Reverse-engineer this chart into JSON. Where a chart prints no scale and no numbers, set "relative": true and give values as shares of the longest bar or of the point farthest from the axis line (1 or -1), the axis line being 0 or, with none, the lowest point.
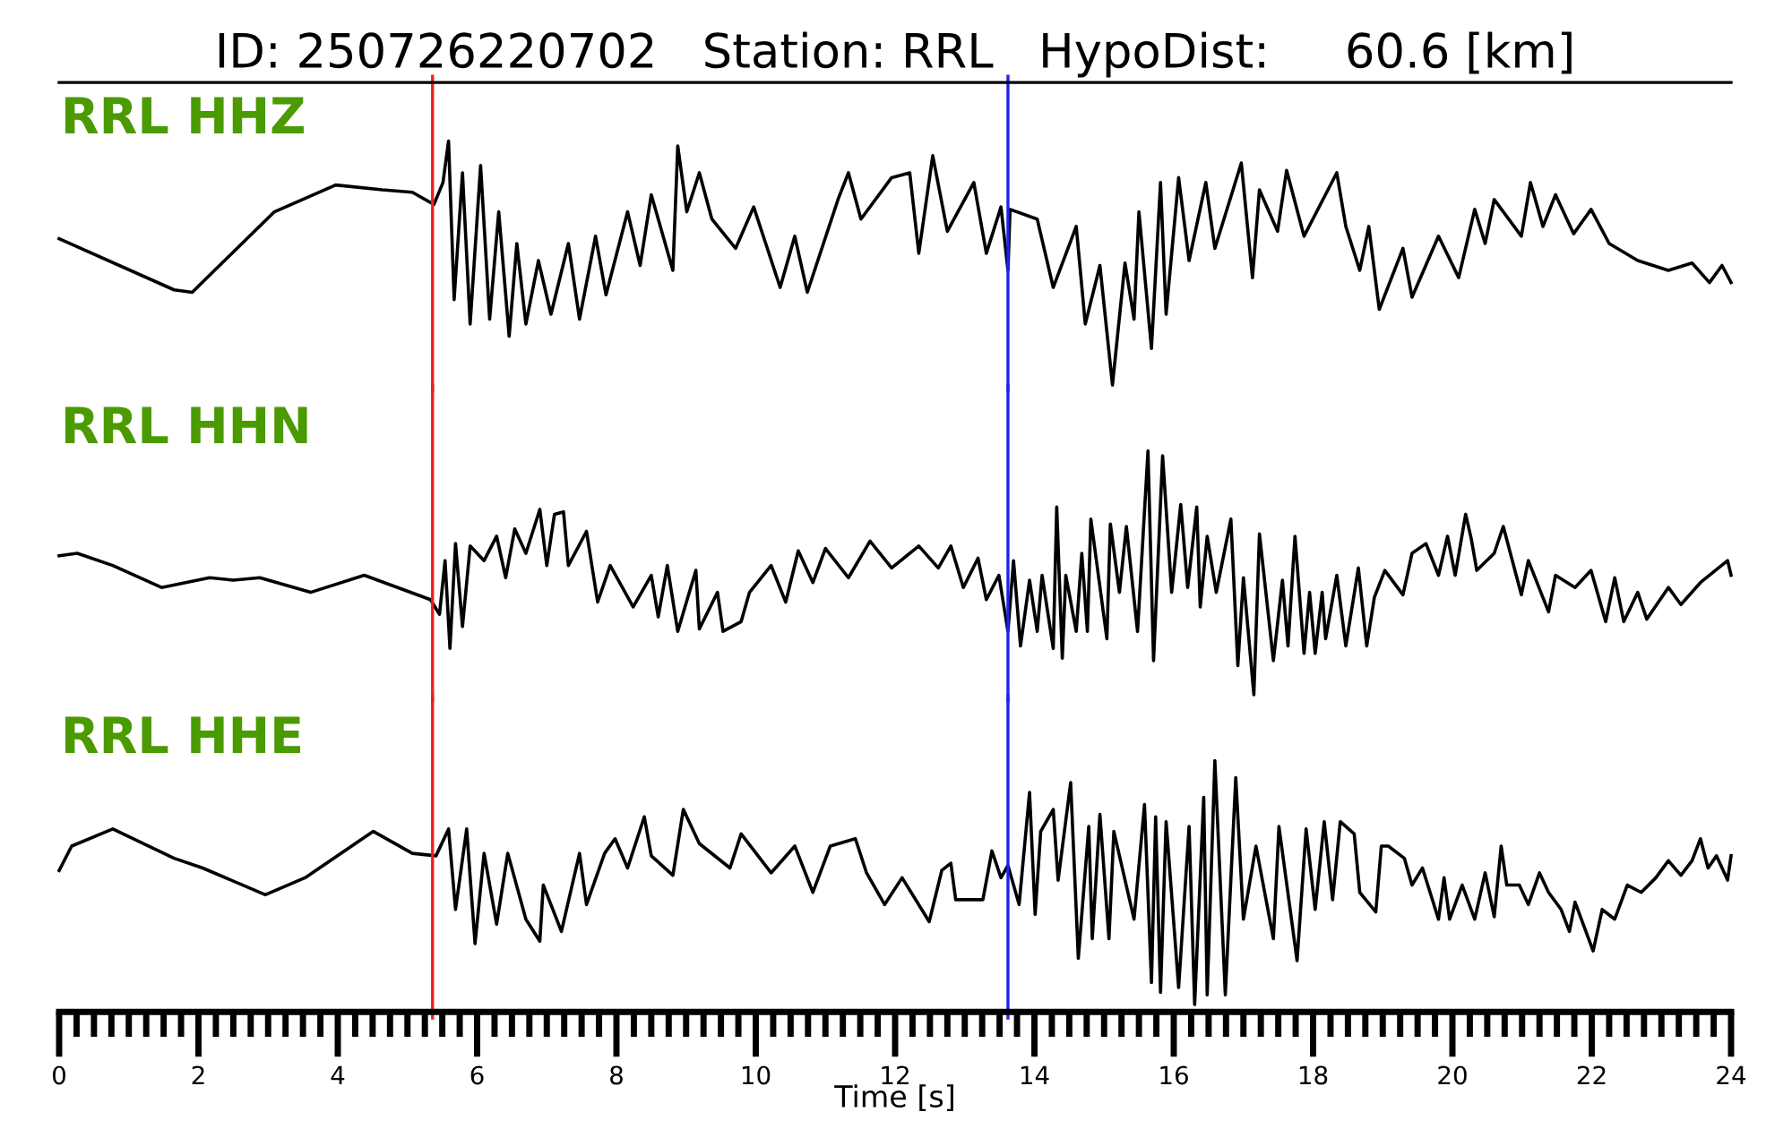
{
  "chart_data": [
    {
      "type": "line",
      "title": "ID: 250726220702   Station: RRL   HypoDist:     60.6 [km]",
      "relative": true,
      "xlim": [
        0,
        24
      ],
      "tick_labels": false,
      "ref_lines": [
        {
          "axis": "x",
          "value": 5.36,
          "color": "#e8211c"
        },
        {
          "axis": "x",
          "value": 13.62,
          "color": "#2020f0"
        }
      ],
      "series": [
        {
          "name": "RRL HHZ",
          "color": "#000000",
          "x": [
            0,
            1.65,
            1.91,
            3.09,
            3.97,
            4.64,
            5.07,
            5.38,
            5.51,
            5.59,
            5.67,
            5.79,
            5.9,
            6.05,
            6.18,
            6.31,
            6.46,
            6.57,
            6.7,
            6.88,
            7.06,
            7.31,
            7.47,
            7.7,
            7.85,
            8.16,
            8.34,
            8.5,
            8.81,
            8.88,
            9.01,
            9.19,
            9.37,
            9.71,
            9.97,
            10.35,
            10.56,
            10.74,
            11.18,
            11.33,
            11.51,
            11.95,
            12.21,
            12.34,
            12.54,
            12.75,
            13.13,
            13.31,
            13.52,
            13.62,
            13.65,
            14.04,
            14.27,
            14.6,
            14.73,
            14.94,
            15.12,
            15.3,
            15.43,
            15.5,
            15.68,
            15.81,
            15.89,
            16.07,
            16.22,
            16.46,
            16.59,
            16.97,
            17.13,
            17.23,
            17.49,
            17.62,
            17.87,
            18.34,
            18.47,
            18.67,
            18.8,
            18.95,
            19.29,
            19.42,
            19.8,
            20.09,
            20.32,
            20.47,
            20.6,
            20.99,
            21.12,
            21.3,
            21.48,
            21.74,
            21.99,
            22.25,
            22.66,
            23.1,
            23.44,
            23.69,
            23.87,
            24.0
          ],
          "values": [
            0.6,
            0.39,
            0.38,
            0.71,
            0.82,
            0.8,
            0.79,
            0.74,
            0.83,
            1.0,
            0.35,
            0.87,
            0.25,
            0.9,
            0.27,
            0.71,
            0.2,
            0.58,
            0.25,
            0.51,
            0.29,
            0.58,
            0.27,
            0.61,
            0.37,
            0.71,
            0.49,
            0.78,
            0.47,
            0.98,
            0.71,
            0.87,
            0.68,
            0.56,
            0.73,
            0.4,
            0.61,
            0.38,
            0.76,
            0.87,
            0.68,
            0.85,
            0.87,
            0.54,
            0.94,
            0.63,
            0.83,
            0.54,
            0.73,
            0.47,
            0.72,
            0.68,
            0.4,
            0.65,
            0.25,
            0.49,
            0.0,
            0.5,
            0.27,
            0.71,
            0.15,
            0.83,
            0.29,
            0.85,
            0.51,
            0.83,
            0.56,
            0.91,
            0.44,
            0.8,
            0.63,
            0.88,
            0.61,
            0.87,
            0.65,
            0.47,
            0.65,
            0.31,
            0.56,
            0.36,
            0.61,
            0.44,
            0.72,
            0.58,
            0.76,
            0.61,
            0.83,
            0.65,
            0.78,
            0.62,
            0.72,
            0.58,
            0.51,
            0.47,
            0.5,
            0.42,
            0.49,
            0.42
          ]
        }
      ]
    },
    {
      "type": "line",
      "relative": true,
      "xlim": [
        0,
        24
      ],
      "tick_labels": false,
      "ref_lines": [
        {
          "axis": "x",
          "value": 5.36,
          "color": "#e8211c"
        },
        {
          "axis": "x",
          "value": 13.62,
          "color": "#2020f0"
        }
      ],
      "series": [
        {
          "name": "RRL HHN",
          "color": "#000000",
          "x": [
            0,
            0.26,
            0.77,
            1.47,
            2.16,
            2.5,
            2.88,
            3.61,
            4.38,
            5.33,
            5.46,
            5.54,
            5.61,
            5.69,
            5.79,
            5.9,
            6.1,
            6.28,
            6.41,
            6.54,
            6.7,
            6.9,
            7.0,
            7.11,
            7.24,
            7.31,
            7.57,
            7.73,
            7.91,
            8.24,
            8.5,
            8.6,
            8.73,
            8.88,
            9.14,
            9.19,
            9.45,
            9.53,
            9.79,
            9.91,
            10.22,
            10.43,
            10.61,
            10.82,
            11.0,
            11.33,
            11.64,
            11.95,
            12.34,
            12.62,
            12.8,
            12.98,
            13.19,
            13.31,
            13.49,
            13.62,
            13.7,
            13.8,
            13.93,
            14.04,
            14.11,
            14.27,
            14.32,
            14.4,
            14.45,
            14.6,
            14.68,
            14.76,
            14.81,
            15.04,
            15.09,
            15.22,
            15.32,
            15.48,
            15.63,
            15.71,
            15.84,
            15.97,
            16.1,
            16.2,
            16.33,
            16.38,
            16.48,
            16.61,
            16.82,
            16.92,
            17.0,
            17.15,
            17.23,
            17.43,
            17.56,
            17.64,
            17.74,
            17.87,
            17.95,
            18.03,
            18.13,
            18.18,
            18.34,
            18.47,
            18.65,
            18.77,
            18.88,
            19.03,
            19.29,
            19.42,
            19.62,
            19.8,
            19.93,
            20.04,
            20.19,
            20.27,
            20.35,
            20.6,
            20.73,
            20.99,
            21.09,
            21.38,
            21.48,
            21.76,
            21.99,
            22.2,
            22.33,
            22.46,
            22.66,
            22.79,
            23.1,
            23.28,
            23.56,
            23.95,
            24.0
          ],
          "values": [
            0.57,
            0.58,
            0.53,
            0.44,
            0.48,
            0.47,
            0.48,
            0.42,
            0.49,
            0.39,
            0.33,
            0.55,
            0.19,
            0.62,
            0.28,
            0.61,
            0.55,
            0.65,
            0.48,
            0.68,
            0.58,
            0.76,
            0.53,
            0.74,
            0.75,
            0.53,
            0.67,
            0.38,
            0.53,
            0.36,
            0.49,
            0.32,
            0.53,
            0.26,
            0.51,
            0.27,
            0.42,
            0.26,
            0.3,
            0.42,
            0.53,
            0.38,
            0.59,
            0.46,
            0.6,
            0.48,
            0.63,
            0.52,
            0.61,
            0.52,
            0.61,
            0.44,
            0.56,
            0.39,
            0.49,
            0.26,
            0.55,
            0.2,
            0.47,
            0.26,
            0.49,
            0.19,
            0.77,
            0.15,
            0.49,
            0.26,
            0.58,
            0.26,
            0.72,
            0.23,
            0.7,
            0.42,
            0.69,
            0.26,
            1.0,
            0.14,
            0.98,
            0.42,
            0.78,
            0.44,
            0.77,
            0.36,
            0.65,
            0.42,
            0.72,
            0.12,
            0.48,
            0.0,
            0.66,
            0.14,
            0.47,
            0.2,
            0.65,
            0.17,
            0.42,
            0.17,
            0.42,
            0.23,
            0.49,
            0.2,
            0.52,
            0.2,
            0.4,
            0.51,
            0.41,
            0.58,
            0.62,
            0.49,
            0.65,
            0.49,
            0.74,
            0.64,
            0.51,
            0.58,
            0.69,
            0.41,
            0.55,
            0.34,
            0.49,
            0.44,
            0.51,
            0.3,
            0.48,
            0.3,
            0.42,
            0.31,
            0.44,
            0.37,
            0.46,
            0.55,
            0.49
          ]
        }
      ]
    },
    {
      "type": "line",
      "relative": true,
      "xlim": [
        0,
        24
      ],
      "xticks": [
        0,
        2,
        4,
        6,
        8,
        10,
        12,
        14,
        16,
        18,
        20,
        22,
        24
      ],
      "xlabel": "Time [s]",
      "tick_labels": "x",
      "ref_lines": [
        {
          "axis": "x",
          "value": 5.36,
          "color": "#e8211c"
        },
        {
          "axis": "x",
          "value": 13.62,
          "color": "#2020f0"
        }
      ],
      "series": [
        {
          "name": "RRL HHE",
          "color": "#000000",
          "x": [
            0,
            0.18,
            0.77,
            1.65,
            2.06,
            2.96,
            3.53,
            4.51,
            5.07,
            5.41,
            5.59,
            5.69,
            5.85,
            5.97,
            6.1,
            6.28,
            6.44,
            6.7,
            6.9,
            6.95,
            7.21,
            7.47,
            7.57,
            7.83,
            7.98,
            8.16,
            8.4,
            8.5,
            8.81,
            8.96,
            9.19,
            9.63,
            9.79,
            10.22,
            10.56,
            10.82,
            11.07,
            11.43,
            11.59,
            11.85,
            12.1,
            12.49,
            12.67,
            12.8,
            12.87,
            13.26,
            13.39,
            13.52,
            13.62,
            13.78,
            13.93,
            14.01,
            14.09,
            14.27,
            14.34,
            14.52,
            14.63,
            14.78,
            14.83,
            14.94,
            15.07,
            15.14,
            15.43,
            15.58,
            15.68,
            15.74,
            15.81,
            15.89,
            16.07,
            16.22,
            16.3,
            16.43,
            16.48,
            16.59,
            16.74,
            16.89,
            17.0,
            17.18,
            17.43,
            17.51,
            17.77,
            17.9,
            18.03,
            18.16,
            18.28,
            18.39,
            18.59,
            18.67,
            18.9,
            18.98,
            19.08,
            19.31,
            19.42,
            19.57,
            19.8,
            19.88,
            19.96,
            20.14,
            20.32,
            20.47,
            20.6,
            20.7,
            20.78,
            20.96,
            21.09,
            21.25,
            21.38,
            21.56,
            21.68,
            21.76,
            22.02,
            22.15,
            22.33,
            22.51,
            22.71,
            22.92,
            23.1,
            23.28,
            23.44,
            23.56,
            23.67,
            23.79,
            23.95,
            24.0
          ],
          "values": [
            0.55,
            0.65,
            0.72,
            0.6,
            0.56,
            0.45,
            0.52,
            0.71,
            0.62,
            0.61,
            0.72,
            0.39,
            0.72,
            0.25,
            0.62,
            0.33,
            0.62,
            0.35,
            0.26,
            0.49,
            0.3,
            0.62,
            0.41,
            0.62,
            0.68,
            0.56,
            0.77,
            0.61,
            0.53,
            0.8,
            0.66,
            0.56,
            0.7,
            0.54,
            0.65,
            0.46,
            0.65,
            0.68,
            0.54,
            0.41,
            0.52,
            0.34,
            0.55,
            0.58,
            0.43,
            0.43,
            0.63,
            0.52,
            0.57,
            0.41,
            0.87,
            0.37,
            0.71,
            0.8,
            0.51,
            0.91,
            0.19,
            0.73,
            0.27,
            0.78,
            0.27,
            0.71,
            0.35,
            0.82,
            0.09,
            0.77,
            0.05,
            0.75,
            0.07,
            0.73,
            0.0,
            0.85,
            0.04,
            1.0,
            0.04,
            0.93,
            0.35,
            0.65,
            0.27,
            0.73,
            0.18,
            0.72,
            0.39,
            0.75,
            0.43,
            0.75,
            0.7,
            0.46,
            0.38,
            0.65,
            0.65,
            0.6,
            0.49,
            0.56,
            0.35,
            0.52,
            0.35,
            0.49,
            0.35,
            0.54,
            0.36,
            0.65,
            0.49,
            0.49,
            0.41,
            0.54,
            0.46,
            0.39,
            0.3,
            0.42,
            0.22,
            0.39,
            0.35,
            0.49,
            0.46,
            0.52,
            0.59,
            0.53,
            0.59,
            0.68,
            0.56,
            0.61,
            0.51,
            0.61
          ]
        }
      ]
    }
  ]
}
